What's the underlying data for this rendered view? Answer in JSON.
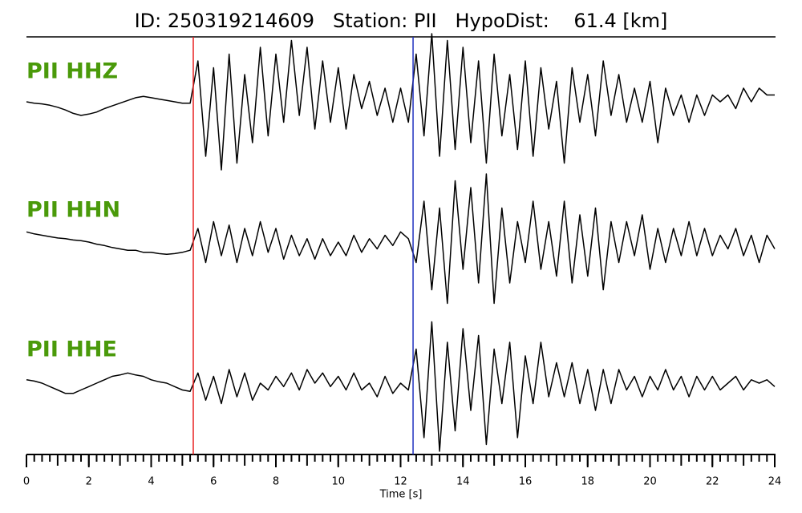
{
  "chart_data": {
    "type": "waveform",
    "title": "ID: 250319214609   Station: PII   HypoDist:    61.4 [km]",
    "xlabel": "Time [s]",
    "xlim": [
      0,
      24
    ],
    "xticks": [
      0,
      2,
      4,
      6,
      8,
      10,
      12,
      14,
      16,
      18,
      20,
      22,
      24
    ],
    "xminorticks": [
      0,
      0.25,
      0.5,
      0.75,
      1,
      1.25,
      1.5,
      1.75,
      2,
      2.25,
      2.5,
      2.75,
      3,
      3.25,
      3.5,
      3.75,
      4,
      4.25,
      4.5,
      4.75,
      5,
      5.25,
      5.5,
      5.75,
      6,
      6.25,
      6.5,
      6.75,
      7,
      7.25,
      7.5,
      7.75,
      8,
      8.25,
      8.5,
      8.75,
      9,
      9.25,
      9.5,
      9.75,
      10,
      10.25,
      10.5,
      10.75,
      11,
      11.25,
      11.5,
      11.75,
      12,
      12.25,
      12.5,
      12.75,
      13,
      13.25,
      13.5,
      13.75,
      14,
      14.25,
      14.5,
      14.75,
      15,
      15.25,
      15.5,
      15.75,
      16,
      16.25,
      16.5,
      16.75,
      17,
      17.25,
      17.5,
      17.75,
      18,
      18.25,
      18.5,
      18.75,
      19,
      19.25,
      19.5,
      19.75,
      20,
      20.25,
      20.5,
      20.75,
      21,
      21.25,
      21.5,
      21.75,
      22,
      22.25,
      22.5,
      22.75,
      23,
      23.25,
      23.5,
      23.75,
      24
    ],
    "label_color": "#4a9a0a",
    "markers": [
      {
        "x": 5.35,
        "color": "#e82020"
      },
      {
        "x": 12.4,
        "color": "#2030c0"
      }
    ],
    "x": [
      0,
      0.25,
      0.5,
      0.75,
      1,
      1.25,
      1.5,
      1.75,
      2,
      2.25,
      2.5,
      2.75,
      3,
      3.25,
      3.5,
      3.75,
      4,
      4.25,
      4.5,
      4.75,
      5,
      5.25,
      5.5,
      5.75,
      6,
      6.25,
      6.5,
      6.75,
      7,
      7.25,
      7.5,
      7.75,
      8,
      8.25,
      8.5,
      8.75,
      9,
      9.25,
      9.5,
      9.75,
      10,
      10.25,
      10.5,
      10.75,
      11,
      11.25,
      11.5,
      11.75,
      12,
      12.25,
      12.5,
      12.75,
      13,
      13.25,
      13.5,
      13.75,
      14,
      14.25,
      14.5,
      14.75,
      15,
      15.25,
      15.5,
      15.75,
      16,
      16.25,
      16.5,
      16.75,
      17,
      17.25,
      17.5,
      17.75,
      18,
      18.25,
      18.5,
      18.75,
      19,
      19.25,
      19.5,
      19.75,
      20,
      20.25,
      20.5,
      20.75,
      21,
      21.25,
      21.5,
      21.75,
      22,
      22.25,
      22.5,
      22.75,
      23,
      23.25,
      23.5,
      23.75,
      24
    ],
    "series": [
      {
        "name": "PII HHZ",
        "color": "#000000",
        "values": [
          0,
          -0.02,
          -0.03,
          -0.05,
          -0.08,
          -0.12,
          -0.17,
          -0.2,
          -0.18,
          -0.15,
          -0.1,
          -0.06,
          -0.02,
          0.02,
          0.06,
          0.08,
          0.06,
          0.04,
          0.02,
          0,
          -0.02,
          -0.02,
          0.6,
          -0.8,
          0.5,
          -1.0,
          0.7,
          -0.9,
          0.4,
          -0.6,
          0.8,
          -0.5,
          0.7,
          -0.3,
          0.9,
          -0.2,
          0.8,
          -0.4,
          0.6,
          -0.3,
          0.5,
          -0.4,
          0.4,
          -0.1,
          0.3,
          -0.2,
          0.2,
          -0.3,
          0.2,
          -0.3,
          0.7,
          -0.5,
          1.0,
          -0.8,
          0.9,
          -0.7,
          0.8,
          -0.6,
          0.6,
          -0.9,
          0.7,
          -0.5,
          0.4,
          -0.7,
          0.6,
          -0.8,
          0.5,
          -0.4,
          0.3,
          -0.9,
          0.5,
          -0.3,
          0.4,
          -0.5,
          0.6,
          -0.2,
          0.4,
          -0.3,
          0.2,
          -0.3,
          0.3,
          -0.6,
          0.2,
          -0.2,
          0.1,
          -0.3,
          0.1,
          -0.2,
          0.1,
          0,
          0.1,
          -0.1,
          0.2,
          0,
          0.2,
          0.1,
          0.1
        ]
      },
      {
        "name": "PII HHN",
        "color": "#000000",
        "values": [
          0.15,
          0.12,
          0.1,
          0.08,
          0.06,
          0.05,
          0.03,
          0.02,
          0,
          -0.03,
          -0.05,
          -0.08,
          -0.1,
          -0.12,
          -0.12,
          -0.15,
          -0.15,
          -0.17,
          -0.18,
          -0.17,
          -0.15,
          -0.12,
          0.2,
          -0.3,
          0.3,
          -0.2,
          0.25,
          -0.3,
          0.2,
          -0.2,
          0.3,
          -0.15,
          0.2,
          -0.25,
          0.1,
          -0.2,
          0.05,
          -0.25,
          0.05,
          -0.2,
          0,
          -0.2,
          0.1,
          -0.15,
          0.05,
          -0.1,
          0.1,
          -0.05,
          0.15,
          0.05,
          -0.3,
          0.6,
          -0.7,
          0.5,
          -0.9,
          0.9,
          -0.4,
          0.8,
          -0.6,
          1.0,
          -0.9,
          0.5,
          -0.6,
          0.3,
          -0.3,
          0.6,
          -0.4,
          0.3,
          -0.5,
          0.6,
          -0.6,
          0.4,
          -0.5,
          0.5,
          -0.7,
          0.3,
          -0.3,
          0.3,
          -0.2,
          0.4,
          -0.4,
          0.2,
          -0.3,
          0.2,
          -0.2,
          0.3,
          -0.2,
          0.2,
          -0.2,
          0.1,
          -0.1,
          0.2,
          -0.2,
          0.1,
          -0.3,
          0.1,
          -0.1
        ]
      },
      {
        "name": "PII HHE",
        "color": "#000000",
        "values": [
          0.05,
          0.03,
          0,
          -0.05,
          -0.1,
          -0.15,
          -0.15,
          -0.1,
          -0.05,
          0,
          0.05,
          0.1,
          0.12,
          0.15,
          0.12,
          0.1,
          0.05,
          0.02,
          0,
          -0.05,
          -0.1,
          -0.12,
          0.15,
          -0.25,
          0.1,
          -0.3,
          0.2,
          -0.2,
          0.15,
          -0.25,
          0,
          -0.1,
          0.1,
          -0.05,
          0.15,
          -0.1,
          0.2,
          0,
          0.15,
          -0.05,
          0.1,
          -0.1,
          0.15,
          -0.1,
          0,
          -0.2,
          0.1,
          -0.15,
          0,
          -0.1,
          0.5,
          -0.8,
          0.9,
          -1.0,
          0.6,
          -0.7,
          0.8,
          -0.4,
          0.7,
          -0.9,
          0.5,
          -0.3,
          0.6,
          -0.8,
          0.4,
          -0.3,
          0.6,
          -0.2,
          0.3,
          -0.2,
          0.3,
          -0.3,
          0.2,
          -0.4,
          0.2,
          -0.3,
          0.2,
          -0.1,
          0.1,
          -0.2,
          0.1,
          -0.1,
          0.2,
          -0.1,
          0.1,
          -0.2,
          0.1,
          -0.1,
          0.1,
          -0.1,
          0,
          0.1,
          -0.1,
          0.05,
          0,
          0.05,
          -0.05
        ]
      }
    ]
  }
}
